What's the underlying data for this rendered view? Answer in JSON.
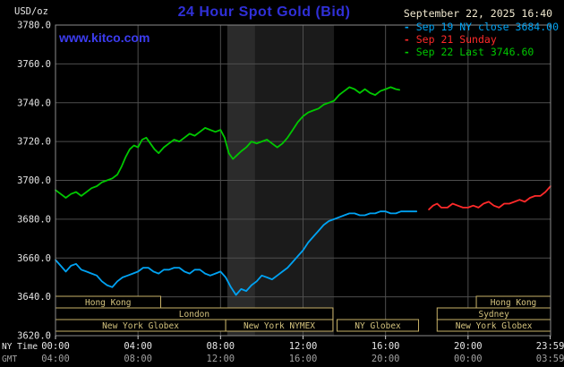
{
  "header": {
    "unit_label": "USD/oz",
    "title": "24 Hour Spot Gold (Bid)",
    "date": "September 22, 2025 16:40",
    "watermark": "www.kitco.com"
  },
  "legend": {
    "marker": "-",
    "items": [
      {
        "text": "Sep 19 NY close 3684.00",
        "color": "#00a2f2"
      },
      {
        "text": "Sep 21 Sunday",
        "color": "#ff2a2a"
      },
      {
        "text": "Sep 22 Last 3746.60",
        "color": "#00c800"
      }
    ]
  },
  "axes": {
    "ny_time_label": "NY Time",
    "gmt_label": "GMT"
  },
  "colors": {
    "title_blue": "#3030d8",
    "watermark_blue": "#3c3cf0",
    "date_cream": "#f0e8cf",
    "tick_white": "#e6e6e6",
    "gmt_gray": "#a0a0a0"
  },
  "chart_data": {
    "type": "line",
    "title": "24 Hour Spot Gold (Bid)",
    "ylabel": "USD/oz",
    "xlabel": "NY Time / GMT",
    "xlim": [
      0,
      24
    ],
    "ylim": [
      3620,
      3780
    ],
    "grid": true,
    "grid_color": "#4e4e4e",
    "border_color": "#8c8c8c",
    "background": "#000000",
    "session_box_color": "#c8b268",
    "session_text_color": "#d4c37e",
    "y_ticks": [
      3620,
      3640,
      3660,
      3680,
      3700,
      3720,
      3740,
      3760,
      3780
    ],
    "x_ticks": {
      "hours": [
        0,
        4,
        8,
        12,
        16,
        20,
        23.9833
      ],
      "ny_labels": [
        "00:00",
        "04:00",
        "08:00",
        "12:00",
        "16:00",
        "20:00",
        "23:59"
      ],
      "gmt_labels": [
        "04:00",
        "08:00",
        "12:00",
        "16:00",
        "20:00",
        "00:00",
        "03:59"
      ]
    },
    "plot_bands": [
      {
        "x0": 8.33,
        "x1": 13.5,
        "color": "#1b1b1b"
      },
      {
        "x0": 8.33,
        "x1": 9.67,
        "color": "#2b2b2b"
      }
    ],
    "sessions": [
      {
        "row": 0,
        "label": "Hong Kong",
        "x0": 0,
        "x1": 5.1
      },
      {
        "row": 0,
        "label": "Hong Kong",
        "x0": 20.4,
        "x1": 24
      },
      {
        "row": 1,
        "label": "London",
        "x0": 0,
        "x1": 13.45
      },
      {
        "row": 1,
        "label": "Sydney",
        "x0": 18.5,
        "x1": 24
      },
      {
        "row": 2,
        "label": "New York Globex",
        "x0": 0,
        "x1": 8.25
      },
      {
        "row": 2,
        "label": "New York NYMEX",
        "x0": 8.25,
        "x1": 13.45
      },
      {
        "row": 2,
        "label": "NY Globex",
        "x0": 13.65,
        "x1": 17.6
      },
      {
        "row": 2,
        "label": "New York Globex",
        "x0": 18.5,
        "x1": 24
      }
    ],
    "series": [
      {
        "name": "Sep 19 NY close 3684.00",
        "color": "#00a2f2",
        "x": [
          0,
          0.25,
          0.5,
          0.75,
          1,
          1.25,
          1.5,
          1.75,
          2,
          2.25,
          2.5,
          2.75,
          3,
          3.25,
          3.5,
          3.75,
          4,
          4.25,
          4.5,
          4.75,
          5,
          5.25,
          5.5,
          5.75,
          6,
          6.25,
          6.5,
          6.75,
          7,
          7.25,
          7.5,
          7.75,
          8,
          8.25,
          8.5,
          8.75,
          9,
          9.25,
          9.5,
          9.75,
          10,
          10.25,
          10.5,
          10.75,
          11,
          11.25,
          11.5,
          11.75,
          12,
          12.25,
          12.5,
          12.75,
          13,
          13.25,
          13.5,
          13.75,
          14,
          14.25,
          14.5,
          14.75,
          15,
          15.25,
          15.5,
          15.75,
          16,
          16.25,
          16.5,
          16.75,
          17,
          17.25,
          17.5
        ],
        "y": [
          3659,
          3656,
          3653,
          3656,
          3657,
          3654,
          3653,
          3652,
          3651,
          3648,
          3646,
          3645,
          3648,
          3650,
          3651,
          3652,
          3653,
          3655,
          3655,
          3653,
          3652,
          3654,
          3654,
          3655,
          3655,
          3653,
          3652,
          3654,
          3654,
          3652,
          3651,
          3652,
          3653,
          3650,
          3645,
          3641,
          3644,
          3643,
          3646,
          3648,
          3651,
          3650,
          3649,
          3651,
          3653,
          3655,
          3658,
          3661,
          3664,
          3668,
          3671,
          3674,
          3677,
          3679,
          3680,
          3681,
          3682,
          3683,
          3683,
          3682,
          3682,
          3683,
          3683,
          3684,
          3684,
          3683,
          3683,
          3684,
          3684,
          3684,
          3684
        ]
      },
      {
        "name": "Sep 21 Sunday",
        "color": "#ff2a2a",
        "x": [
          18.1,
          18.3,
          18.5,
          18.7,
          19,
          19.25,
          19.5,
          19.75,
          20,
          20.25,
          20.5,
          20.75,
          21,
          21.25,
          21.5,
          21.75,
          22,
          22.25,
          22.5,
          22.75,
          23,
          23.25,
          23.5,
          23.75,
          24
        ],
        "y": [
          3685,
          3687,
          3688,
          3686,
          3686,
          3688,
          3687,
          3686,
          3686,
          3687,
          3686,
          3688,
          3689,
          3687,
          3686,
          3688,
          3688,
          3689,
          3690,
          3689,
          3691,
          3692,
          3692,
          3694,
          3697
        ]
      },
      {
        "name": "Sep 22 Last 3746.60",
        "color": "#00c800",
        "x": [
          0,
          0.25,
          0.5,
          0.75,
          1,
          1.25,
          1.5,
          1.75,
          2,
          2.25,
          2.5,
          2.75,
          3,
          3.2,
          3.4,
          3.6,
          3.8,
          4,
          4.2,
          4.4,
          4.6,
          4.8,
          5,
          5.25,
          5.5,
          5.75,
          6,
          6.25,
          6.5,
          6.75,
          7,
          7.25,
          7.5,
          7.75,
          8,
          8.2,
          8.4,
          8.6,
          8.8,
          9,
          9.25,
          9.5,
          9.75,
          10,
          10.25,
          10.5,
          10.75,
          11,
          11.25,
          11.5,
          11.75,
          12,
          12.25,
          12.5,
          12.75,
          13,
          13.25,
          13.5,
          13.75,
          14,
          14.25,
          14.5,
          14.75,
          15,
          15.25,
          15.5,
          15.75,
          16,
          16.25,
          16.5,
          16.67
        ],
        "y": [
          3695,
          3693,
          3691,
          3693,
          3694,
          3692,
          3694,
          3696,
          3697,
          3699,
          3700,
          3701,
          3703,
          3707,
          3712,
          3716,
          3718,
          3717,
          3721,
          3722,
          3719,
          3716,
          3714,
          3717,
          3719,
          3721,
          3720,
          3722,
          3724,
          3723,
          3725,
          3727,
          3726,
          3725,
          3726,
          3722,
          3714,
          3711,
          3713,
          3715,
          3717,
          3720,
          3719,
          3720,
          3721,
          3719,
          3717,
          3719,
          3722,
          3726,
          3730,
          3733,
          3735,
          3736,
          3737,
          3739,
          3740,
          3741,
          3744,
          3746,
          3748,
          3747,
          3745,
          3747,
          3745,
          3744,
          3746,
          3747,
          3748,
          3747,
          3746.6
        ]
      }
    ]
  }
}
